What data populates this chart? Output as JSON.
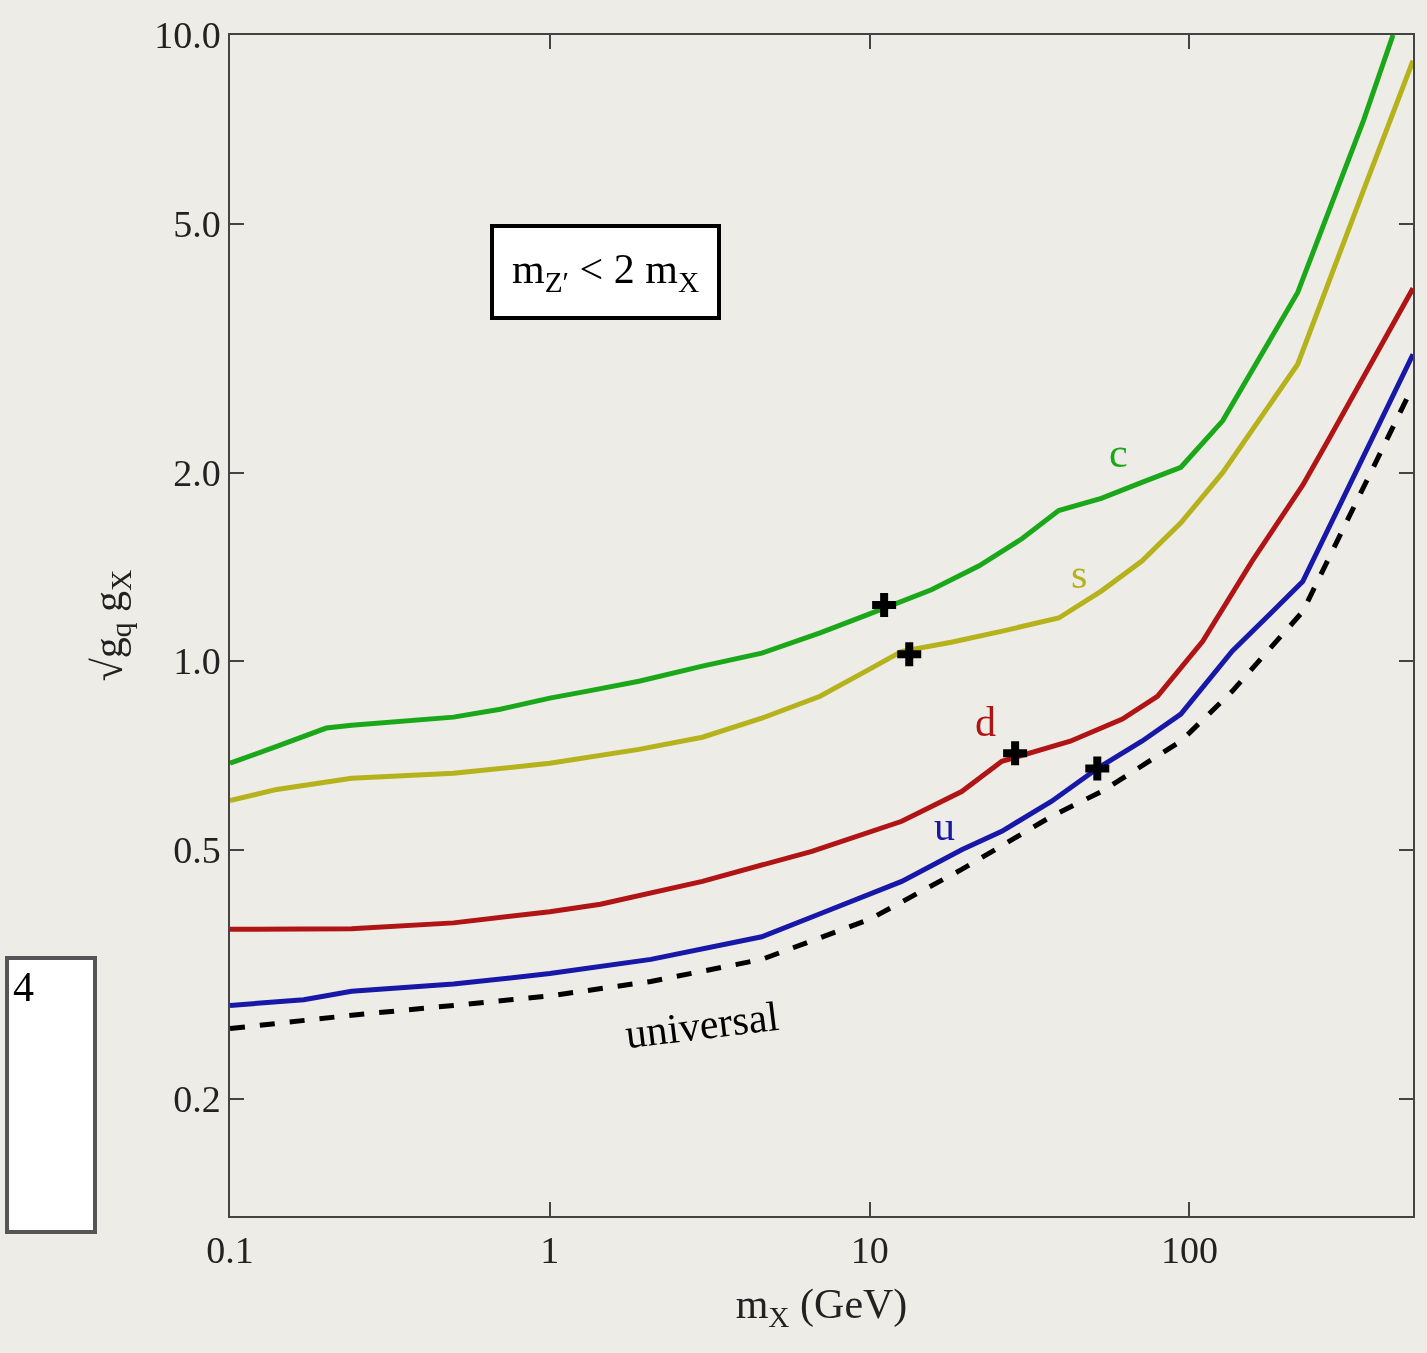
{
  "chart_data": {
    "type": "line",
    "xlabel": "m$_{X}$ (GeV)",
    "ylabel": "√g$_{q}$ g$_{X}$",
    "log": "xy",
    "grid": false,
    "legend": false,
    "xlim": [
      0.1,
      500
    ],
    "xticks": [
      0.1,
      1,
      10,
      100
    ],
    "ylim": [
      0.13,
      10
    ],
    "yticks": [
      0.2,
      0.5,
      {
        "value": 1,
        "label": "1.0"
      },
      {
        "value": 2,
        "label": "2.0"
      },
      {
        "value": 5,
        "label": "5.0"
      },
      {
        "value": 10,
        "label": "10.0"
      }
    ],
    "annotations": [
      "m$_{Z′}$ < 2 m$_{X}$",
      "4"
    ],
    "series": [
      {
        "name": "c",
        "color": "#1aa81a",
        "x": [
          0.1,
          0.14,
          0.2,
          0.24,
          0.5,
          0.7,
          1,
          1.3,
          1.9,
          3,
          4.6,
          7,
          10,
          15.6,
          22,
          30,
          39,
          53,
          71,
          94,
          127,
          218,
          350,
          433
        ],
        "values": [
          0.687,
          0.731,
          0.782,
          0.79,
          0.814,
          0.838,
          0.873,
          0.895,
          0.929,
          0.982,
          1.03,
          1.11,
          1.19,
          1.3,
          1.42,
          1.57,
          1.74,
          1.82,
          1.93,
          2.04,
          2.42,
          3.88,
          7.3,
          10
        ]
      },
      {
        "name": "s",
        "color": "#b5b21c",
        "x": [
          0.1,
          0.14,
          0.24,
          0.5,
          1,
          1.9,
          3,
          4.6,
          7,
          10,
          12.6,
          18,
          26,
          39,
          53,
          71,
          94,
          127,
          218,
          350,
          500
        ],
        "values": [
          0.599,
          0.624,
          0.65,
          0.662,
          0.687,
          0.723,
          0.756,
          0.811,
          0.879,
          0.971,
          1.037,
          1.072,
          1.117,
          1.172,
          1.294,
          1.445,
          1.663,
          2.0,
          2.98,
          5.65,
          9.1
        ]
      },
      {
        "name": "d",
        "color": "#b01414",
        "x": [
          0.1,
          0.24,
          0.5,
          1,
          1.44,
          3,
          6.6,
          12.6,
          19.4,
          25.9,
          42.4,
          61.7,
          79.4,
          110,
          157,
          226,
          271,
          500
        ],
        "values": [
          0.373,
          0.374,
          0.382,
          0.398,
          0.409,
          0.445,
          0.497,
          0.555,
          0.619,
          0.692,
          0.745,
          0.808,
          0.879,
          1.076,
          1.445,
          1.91,
          2.25,
          3.94
        ]
      },
      {
        "name": "u",
        "color": "#1818a8",
        "x": [
          0.1,
          0.17,
          0.24,
          0.5,
          1,
          2.07,
          4.6,
          7,
          12.6,
          19.4,
          25.9,
          37,
          51.5,
          71,
          94,
          136,
          226,
          500
        ],
        "values": [
          0.282,
          0.288,
          0.297,
          0.305,
          0.317,
          0.334,
          0.363,
          0.395,
          0.445,
          0.5,
          0.535,
          0.597,
          0.674,
          0.745,
          0.823,
          1.037,
          1.34,
          3.09
        ]
      },
      {
        "name": "universal",
        "color": "#000000",
        "line_style": "dashed",
        "x": [
          0.1,
          0.24,
          0.5,
          1,
          2.07,
          4.6,
          10,
          19.4,
          37,
          53,
          94,
          136,
          226,
          500
        ],
        "values": [
          0.259,
          0.272,
          0.282,
          0.292,
          0.308,
          0.334,
          0.387,
          0.465,
          0.565,
          0.619,
          0.745,
          0.895,
          1.2,
          2.75
        ]
      },
      {
        "type": "scatter",
        "marker": "cross",
        "color": "#000000",
        "x": [
          11.1,
          13.3,
          28.5,
          51.5
        ],
        "values": [
          1.23,
          1.026,
          0.713,
          0.674
        ]
      }
    ]
  }
}
